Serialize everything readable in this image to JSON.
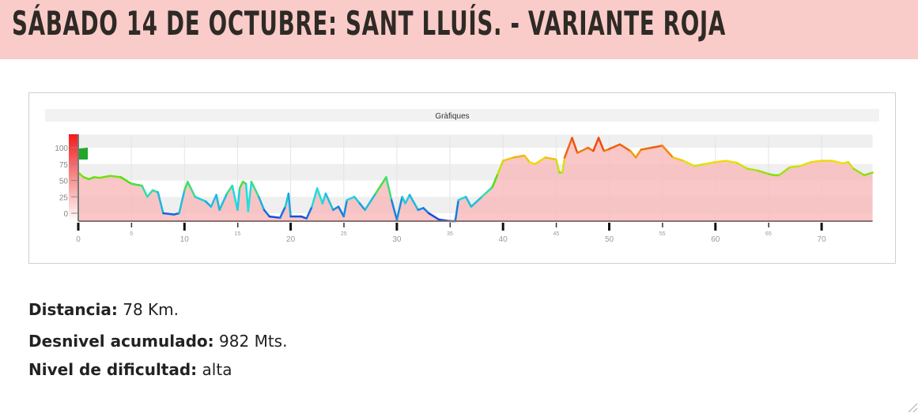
{
  "header": {
    "title": "SÁBADO 14 DE OCTUBRE: SANT LLUÍS. - VARIANTE ROJA"
  },
  "chart_data": {
    "type": "area",
    "title": "Gràfiques",
    "xlabel": "",
    "ylabel": "",
    "xlim": [
      0,
      74.8
    ],
    "ylim": [
      -12,
      120
    ],
    "x_ticks_major": [
      "0",
      "10",
      "20",
      "30",
      "40",
      "50",
      "60",
      "70"
    ],
    "x_ticks_minor": [
      "5",
      "15",
      "25",
      "35",
      "45",
      "55",
      "65"
    ],
    "y_ticks": [
      "100",
      "75",
      "50",
      "25",
      "0"
    ],
    "grid": true,
    "fill_color": "#f7b9b9",
    "gradient_colors": {
      "low": "#1030e0",
      "mid_low": "#20e0e0",
      "mid": "#50e010",
      "mid_high": "#f0e010",
      "high": "#f01010"
    },
    "points": [
      [
        0,
        62
      ],
      [
        0.5,
        55
      ],
      [
        1,
        52
      ],
      [
        1.5,
        55
      ],
      [
        2,
        54
      ],
      [
        3,
        57
      ],
      [
        4,
        55
      ],
      [
        5,
        45
      ],
      [
        6,
        42
      ],
      [
        6.5,
        25
      ],
      [
        7,
        35
      ],
      [
        7.5,
        32
      ],
      [
        8,
        0
      ],
      [
        9,
        -2
      ],
      [
        9.5,
        0
      ],
      [
        10,
        35
      ],
      [
        10.3,
        48
      ],
      [
        11,
        25
      ],
      [
        12,
        18
      ],
      [
        12.5,
        10
      ],
      [
        13,
        28
      ],
      [
        13.3,
        5
      ],
      [
        14,
        30
      ],
      [
        14.5,
        42
      ],
      [
        15,
        5
      ],
      [
        15.2,
        38
      ],
      [
        15.5,
        48
      ],
      [
        15.8,
        45
      ],
      [
        16,
        3
      ],
      [
        16.3,
        48
      ],
      [
        17,
        25
      ],
      [
        17.5,
        5
      ],
      [
        18,
        -5
      ],
      [
        19,
        -7
      ],
      [
        19.5,
        10
      ],
      [
        19.8,
        30
      ],
      [
        20,
        -5
      ],
      [
        21,
        -5
      ],
      [
        21.5,
        -8
      ],
      [
        22,
        10
      ],
      [
        22.5,
        38
      ],
      [
        23,
        15
      ],
      [
        23.3,
        30
      ],
      [
        24,
        5
      ],
      [
        24.5,
        10
      ],
      [
        25,
        -5
      ],
      [
        25.3,
        20
      ],
      [
        26,
        25
      ],
      [
        26.5,
        15
      ],
      [
        27,
        5
      ],
      [
        28,
        30
      ],
      [
        29,
        55
      ],
      [
        29.5,
        20
      ],
      [
        30,
        -10
      ],
      [
        30.5,
        25
      ],
      [
        30.8,
        15
      ],
      [
        31.2,
        28
      ],
      [
        32,
        5
      ],
      [
        32.5,
        8
      ],
      [
        33,
        0
      ],
      [
        34,
        -10
      ],
      [
        35,
        -12
      ],
      [
        35.5,
        -12
      ],
      [
        35.8,
        20
      ],
      [
        36.5,
        25
      ],
      [
        37,
        10
      ],
      [
        38,
        25
      ],
      [
        39,
        40
      ],
      [
        39.5,
        60
      ],
      [
        40,
        80
      ],
      [
        41,
        85
      ],
      [
        42,
        88
      ],
      [
        42.5,
        78
      ],
      [
        43,
        75
      ],
      [
        44,
        85
      ],
      [
        45,
        82
      ],
      [
        45.3,
        62
      ],
      [
        45.6,
        62
      ],
      [
        45.8,
        85
      ],
      [
        46.5,
        115
      ],
      [
        47,
        92
      ],
      [
        48,
        100
      ],
      [
        48.5,
        95
      ],
      [
        49,
        115
      ],
      [
        49.5,
        95
      ],
      [
        50,
        98
      ],
      [
        51,
        105
      ],
      [
        52,
        95
      ],
      [
        52.5,
        85
      ],
      [
        53,
        97
      ],
      [
        54,
        100
      ],
      [
        55,
        103
      ],
      [
        56,
        85
      ],
      [
        57,
        80
      ],
      [
        58,
        72
      ],
      [
        59,
        75
      ],
      [
        60,
        78
      ],
      [
        61,
        80
      ],
      [
        62,
        77
      ],
      [
        63,
        68
      ],
      [
        64,
        65
      ],
      [
        65,
        60
      ],
      [
        65.5,
        58
      ],
      [
        66,
        58
      ],
      [
        67,
        70
      ],
      [
        68,
        72
      ],
      [
        69,
        78
      ],
      [
        70,
        80
      ],
      [
        71,
        80
      ],
      [
        72,
        76
      ],
      [
        72.5,
        78
      ],
      [
        73,
        68
      ],
      [
        74,
        58
      ],
      [
        74.8,
        62
      ]
    ]
  },
  "stats": {
    "distance_label": "Distancia:",
    "distance_value": "78 Km.",
    "elevation_label": "Desnivel acumulado:",
    "elevation_value": "982 Mts.",
    "difficulty_label": "Nivel de dificultad:",
    "difficulty_value": "alta"
  }
}
